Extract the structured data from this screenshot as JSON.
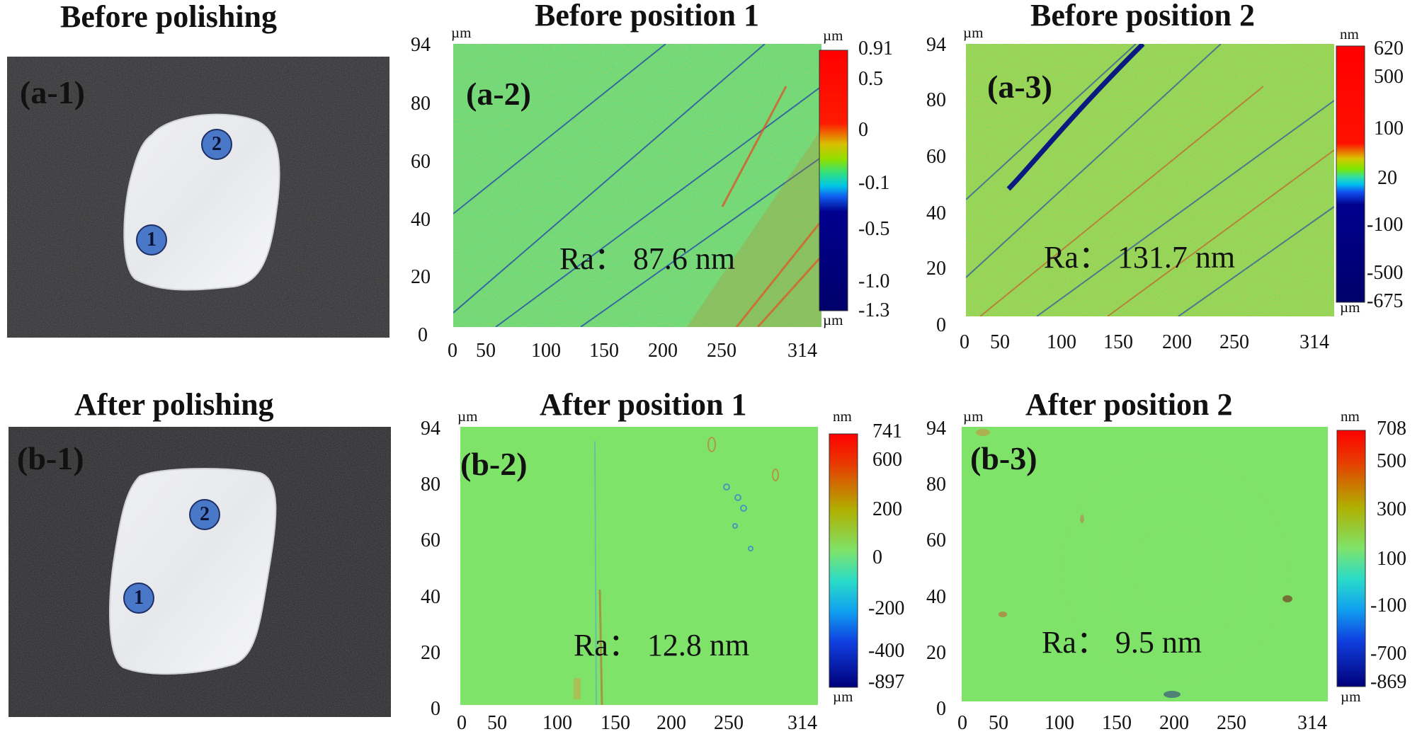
{
  "titles": {
    "before_polishing": "Before polishing",
    "after_polishing": "After polishing",
    "before_pos1": "Before position 1",
    "before_pos2": "Before position 2",
    "after_pos1": "After position 1",
    "after_pos2": "After position 2"
  },
  "photos": {
    "a1": {
      "label": "(a-1)",
      "marker1": "1",
      "marker2": "2"
    },
    "b1": {
      "label": "(b-1)",
      "marker1": "1",
      "marker2": "2"
    }
  },
  "maps": {
    "a2": {
      "label": "(a-2)",
      "ra": "Ra： 87.6 nm",
      "axis_unit": "µm",
      "colorbar_unit_top": "µm",
      "colorbar_unit_bottom": "µm",
      "colorbar_ticks": [
        "0.91",
        "0.5",
        "0",
        "-0.1",
        "-0.5",
        "-1.0",
        "-1.3"
      ]
    },
    "a3": {
      "label": "(a-3)",
      "ra": "Ra： 131.7 nm",
      "axis_unit": "µm",
      "colorbar_unit_top": "nm",
      "colorbar_unit_bottom": "µm",
      "colorbar_ticks": [
        "620",
        "500",
        "100",
        "20",
        "-100",
        "-500",
        "-675"
      ]
    },
    "b2": {
      "label": "(b-2)",
      "ra": "Ra： 12.8 nm",
      "axis_unit": "µm",
      "colorbar_unit_top": "nm",
      "colorbar_unit_bottom": "µm",
      "colorbar_ticks": [
        "741",
        "600",
        "200",
        "0",
        "-200",
        "-400",
        "-897"
      ]
    },
    "b3": {
      "label": "(b-3)",
      "ra": "Ra： 9.5 nm",
      "axis_unit": "µm",
      "colorbar_unit_top": "nm",
      "colorbar_unit_bottom": "µm",
      "colorbar_ticks": [
        "708",
        "500",
        "300",
        "100",
        "-100",
        "-700",
        "-869"
      ]
    }
  },
  "axes": {
    "y_ticks": [
      "94",
      "80",
      "60",
      "40",
      "20",
      "0"
    ],
    "x_ticks": [
      "0",
      "50",
      "100",
      "150",
      "200",
      "250",
      "314"
    ]
  },
  "colors": {
    "surface_green": "#7fe36a",
    "photo_background": "#3e3e40",
    "marker_fill": "#4a78c8",
    "colorbar_red": "#ff0000",
    "colorbar_navy": "#00007a"
  },
  "chart_data": [
    {
      "type": "heatmap",
      "title": "Before position 1",
      "xlim": [
        0,
        314
      ],
      "ylim": [
        0,
        94
      ],
      "xunit": "µm",
      "yunit": "µm",
      "colorbar": [
        0.91,
        0.5,
        0,
        -0.1,
        -0.5,
        -1.0,
        -1.3
      ],
      "colorbar_unit": "µm",
      "annotation": "Ra： 87.6 nm"
    },
    {
      "type": "heatmap",
      "title": "Before position 2",
      "xlim": [
        0,
        314
      ],
      "ylim": [
        0,
        94
      ],
      "xunit": "µm",
      "yunit": "µm",
      "colorbar": [
        620,
        500,
        100,
        20,
        -100,
        -500,
        -675
      ],
      "colorbar_unit": "nm",
      "annotation": "Ra： 131.7 nm"
    },
    {
      "type": "heatmap",
      "title": "After position 1",
      "xlim": [
        0,
        314
      ],
      "ylim": [
        0,
        94
      ],
      "xunit": "µm",
      "yunit": "µm",
      "colorbar": [
        741,
        600,
        200,
        0,
        -200,
        -400,
        -897
      ],
      "colorbar_unit": "nm",
      "annotation": "Ra： 12.8 nm"
    },
    {
      "type": "heatmap",
      "title": "After position 2",
      "xlim": [
        0,
        314
      ],
      "ylim": [
        0,
        94
      ],
      "xunit": "µm",
      "yunit": "µm",
      "colorbar": [
        708,
        500,
        300,
        100,
        -100,
        -700,
        -869
      ],
      "colorbar_unit": "nm",
      "annotation": "Ra： 9.5 nm"
    }
  ]
}
